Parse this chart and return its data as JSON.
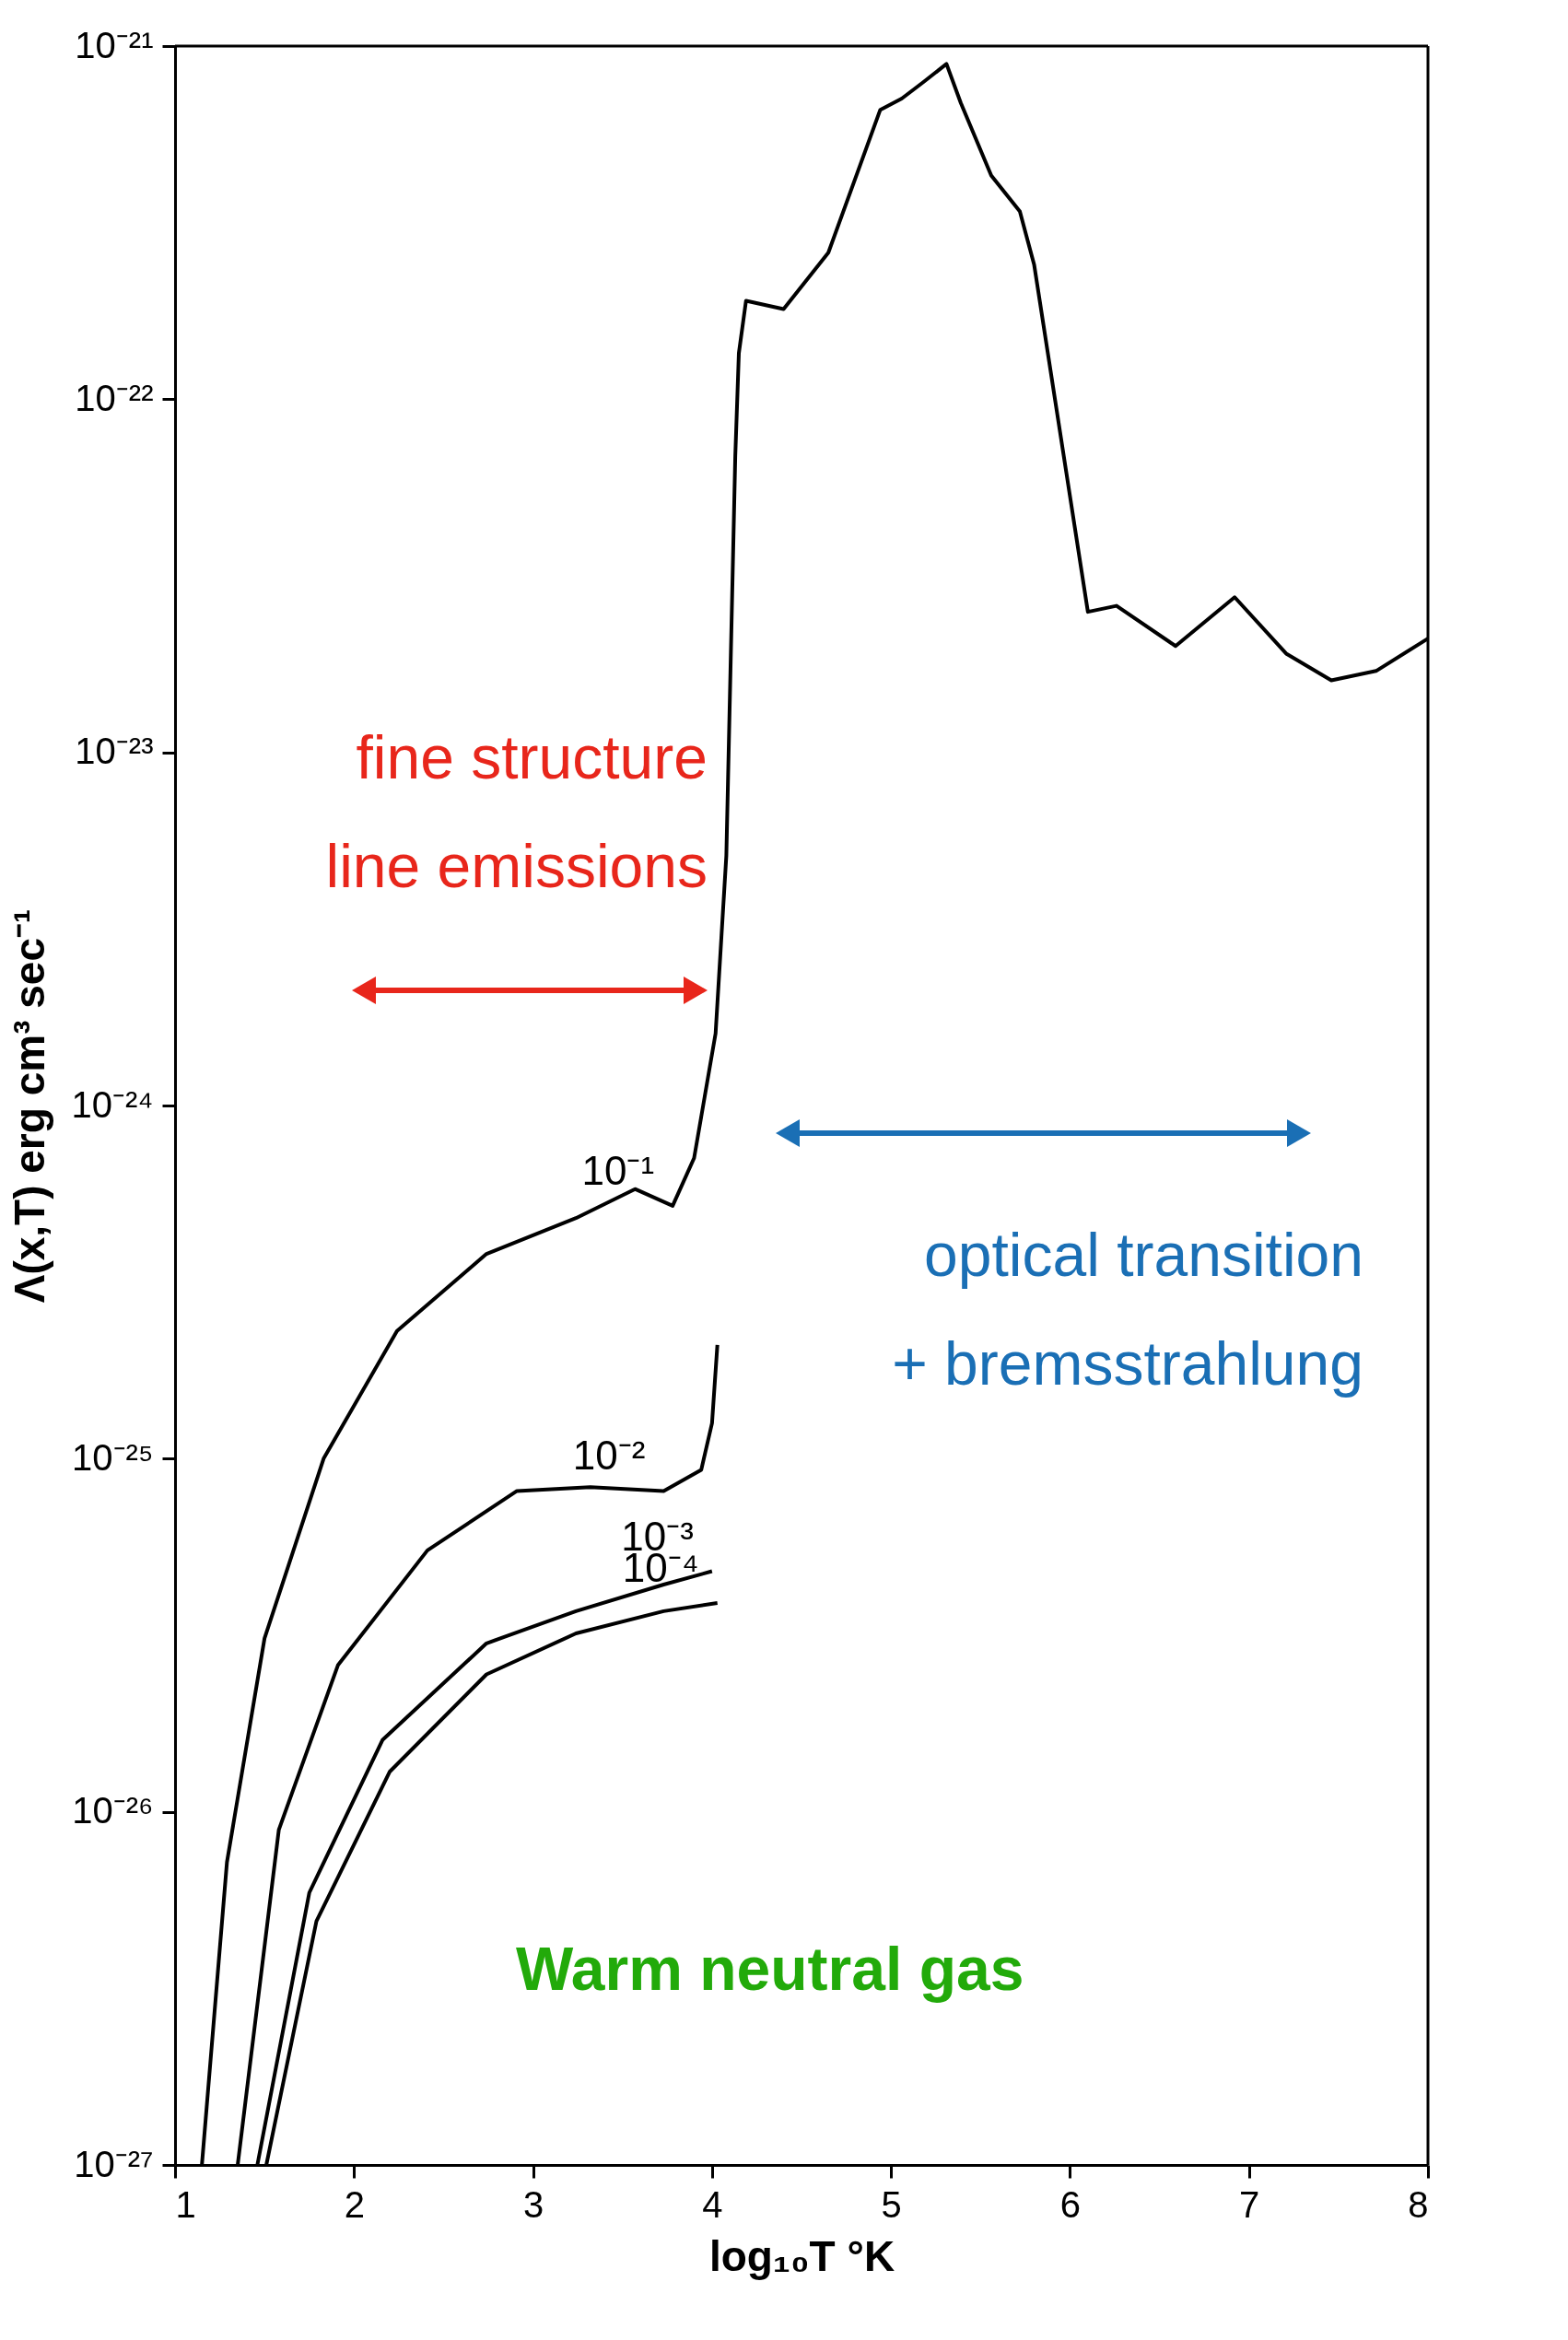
{
  "chart_data": {
    "type": "line",
    "xlabel": "log₁₀T °K",
    "ylabel": "Λ(x,T) erg cm³ sec⁻¹",
    "xlim": [
      1,
      8
    ],
    "xticks": [
      1,
      2,
      3,
      4,
      5,
      6,
      7,
      8
    ],
    "ylim": [
      1e-27,
      1e-21
    ],
    "yticks": [
      {
        "value": 1e-27,
        "label": "10⁻²⁷"
      },
      {
        "value": 1e-26,
        "label": "10⁻²⁶"
      },
      {
        "value": 1e-25,
        "label": "10⁻²⁵"
      },
      {
        "value": 1e-24,
        "label": "10⁻²⁴"
      },
      {
        "value": 1e-23,
        "label": "10⁻²³"
      },
      {
        "value": 1e-22,
        "label": "10⁻²²"
      },
      {
        "value": 1e-21,
        "label": "10⁻²¹"
      }
    ],
    "log": "y",
    "grid": false,
    "marker": "none",
    "line_style": "solid",
    "series": [
      {
        "name": "10⁻¹",
        "color": "#000000",
        "x": [
          1.15,
          1.29,
          1.5,
          1.83,
          2.24,
          2.74,
          3.24,
          3.57,
          3.78,
          3.9,
          4.02,
          4.08,
          4.13,
          4.15,
          4.19,
          4.4,
          4.65,
          4.94,
          5.06,
          5.18,
          5.31,
          5.39,
          5.56,
          5.72,
          5.8,
          6.1,
          6.26,
          6.59,
          6.92,
          7.21,
          7.46,
          7.71,
          8.0
        ],
        "values": [
          1e-27,
          7.2e-27,
          3.1e-26,
          1e-25,
          2.3e-25,
          3.8e-25,
          4.8e-25,
          5.8e-25,
          5.2e-25,
          7.1e-25,
          1.6e-24,
          5.1e-24,
          6.9e-23,
          1.35e-22,
          1.9e-22,
          1.8e-22,
          2.6e-22,
          6.6e-22,
          7.1e-22,
          7.9e-22,
          8.9e-22,
          6.9e-22,
          4.3e-22,
          3.4e-22,
          2.4e-22,
          2.5e-23,
          2.6e-23,
          2e-23,
          2.75e-23,
          1.9e-23,
          1.6e-23,
          1.7e-23,
          2.1e-23
        ]
      },
      {
        "name": "10⁻²",
        "color": "#000000",
        "x": [
          1.35,
          1.58,
          1.91,
          2.41,
          2.91,
          3.32,
          3.73,
          3.94,
          4.0,
          4.03
        ],
        "values": [
          1e-27,
          8.9e-27,
          2.6e-26,
          5.5e-26,
          8.1e-26,
          8.3e-26,
          8.1e-26,
          9.3e-26,
          1.26e-25,
          2.1e-25
        ]
      },
      {
        "name": "10⁻³",
        "color": "#000000",
        "x": [
          1.46,
          1.75,
          2.16,
          2.74,
          3.24,
          3.73,
          4.0
        ],
        "values": [
          1e-27,
          5.9e-27,
          1.6e-26,
          3e-26,
          3.7e-26,
          4.4e-26,
          4.8e-26
        ]
      },
      {
        "name": "10⁻⁴",
        "color": "#000000",
        "x": [
          1.51,
          1.79,
          2.2,
          2.74,
          3.24,
          3.73,
          4.03
        ],
        "values": [
          1e-27,
          4.9e-27,
          1.3e-26,
          2.45e-26,
          3.2e-26,
          3.7e-26,
          3.9e-26
        ]
      }
    ],
    "annotations": [
      "fine structure\nline emissions",
      "optical transition\n+ bremsstrahlung",
      "Warm neutral gas"
    ]
  }
}
